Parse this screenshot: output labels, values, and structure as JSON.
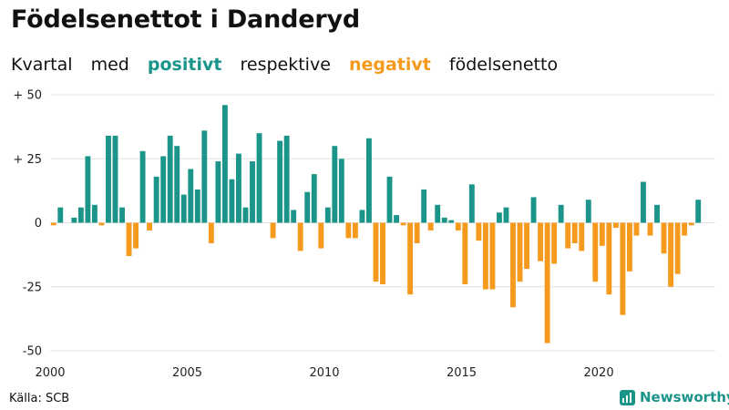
{
  "title": "Födelsenettot i Danderyd",
  "subtitle": {
    "part1": "Kvartal",
    "part2": "med",
    "positive_word": "positivt",
    "part3": "respektive",
    "negative_word": "negativt",
    "part4": "födelsenetto"
  },
  "source": "Källa: SCB",
  "brand": "Newsworthy",
  "colors": {
    "positive": "#1b958a",
    "negative": "#f59a1c",
    "grid": "#e2e2e2",
    "brand": "#1b958a"
  },
  "chart_data": {
    "type": "bar",
    "title": "Födelsenettot i Danderyd",
    "xlabel": "",
    "ylabel": "",
    "ylim": [
      -50,
      50
    ],
    "xlim": [
      2000,
      2024.25
    ],
    "y_ticks": [
      50,
      25,
      0,
      -25,
      -50
    ],
    "y_tick_labels": [
      "+ 50",
      "+ 25",
      "0",
      "-25",
      "-50"
    ],
    "x_ticks": [
      2000,
      2005,
      2010,
      2015,
      2020
    ],
    "x_tick_labels": [
      "2000",
      "2005",
      "2010",
      "2015",
      "2020"
    ],
    "start_year": 2000,
    "period": "quarter",
    "values": [
      -1,
      6,
      0,
      2,
      6,
      26,
      7,
      -1,
      34,
      34,
      6,
      -13,
      -10,
      28,
      -3,
      18,
      26,
      34,
      30,
      11,
      21,
      13,
      36,
      -8,
      24,
      46,
      17,
      27,
      6,
      24,
      35,
      0,
      -6,
      32,
      34,
      5,
      -11,
      12,
      19,
      -10,
      6,
      30,
      25,
      -6,
      -6,
      5,
      33,
      -23,
      -24,
      18,
      3,
      -1,
      -28,
      -8,
      13,
      -3,
      7,
      2,
      1,
      -3,
      -24,
      15,
      -7,
      -26,
      -26,
      4,
      6,
      -33,
      -23,
      -18,
      10,
      -15,
      -47,
      -16,
      7,
      -10,
      -8,
      -11,
      9,
      -23,
      -9,
      -28,
      -2,
      -36,
      -19,
      -5,
      16,
      -5,
      7,
      -12,
      -25,
      -20,
      -5,
      -1,
      9
    ]
  }
}
